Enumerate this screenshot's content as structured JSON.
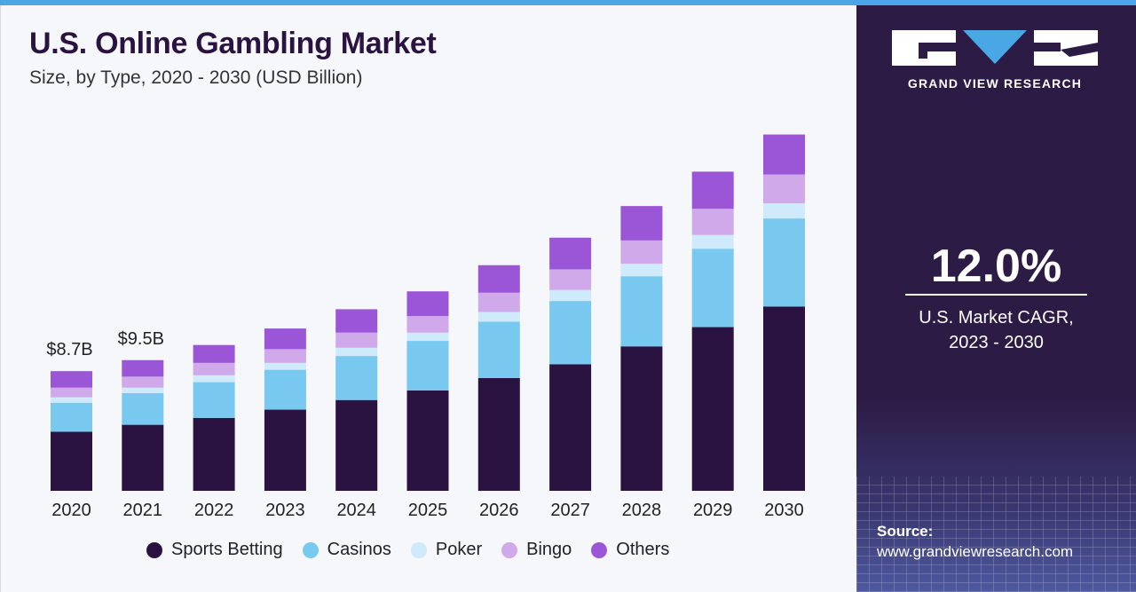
{
  "header": {
    "title": "U.S. Online Gambling Market",
    "subtitle": "Size, by Type, 2020 - 2030 (USD Billion)"
  },
  "brand": {
    "name": "GRAND VIEW RESEARCH",
    "cagr_value": "12.0%",
    "cagr_label_line1": "U.S. Market CAGR,",
    "cagr_label_line2": "2023 - 2030",
    "source_label": "Source:",
    "source_url": "www.grandviewresearch.com"
  },
  "colors": {
    "Sports Betting": "#2a1340",
    "Casinos": "#79c8f0",
    "Poker": "#cfeafb",
    "Bingo": "#cfa9ea",
    "Others": "#9a56d6"
  },
  "chart_data": {
    "type": "bar",
    "stacked": true,
    "title": "U.S. Online Gambling Market",
    "subtitle": "Size, by Type, 2020 - 2030 (USD Billion)",
    "categories": [
      "2020",
      "2021",
      "2022",
      "2023",
      "2024",
      "2025",
      "2026",
      "2027",
      "2028",
      "2029",
      "2030"
    ],
    "series": [
      {
        "name": "Sports Betting",
        "values": [
          4.3,
          4.8,
          5.3,
          5.9,
          6.6,
          7.3,
          8.2,
          9.2,
          10.5,
          11.9,
          13.4
        ]
      },
      {
        "name": "Casinos",
        "values": [
          2.1,
          2.3,
          2.6,
          2.9,
          3.2,
          3.6,
          4.1,
          4.6,
          5.1,
          5.7,
          6.4
        ]
      },
      {
        "name": "Poker",
        "values": [
          0.4,
          0.4,
          0.5,
          0.5,
          0.6,
          0.6,
          0.7,
          0.8,
          0.9,
          1.0,
          1.1
        ]
      },
      {
        "name": "Bingo",
        "values": [
          0.7,
          0.8,
          0.9,
          1.0,
          1.1,
          1.2,
          1.4,
          1.5,
          1.7,
          1.9,
          2.1
        ]
      },
      {
        "name": "Others",
        "values": [
          1.2,
          1.2,
          1.3,
          1.5,
          1.7,
          1.8,
          2.0,
          2.3,
          2.5,
          2.7,
          2.9
        ]
      }
    ],
    "data_labels": [
      {
        "category": "2020",
        "text": "$8.7B"
      },
      {
        "category": "2021",
        "text": "$9.5B"
      }
    ],
    "ylim": [
      0,
      28
    ],
    "grid": false,
    "legend_position": "bottom"
  }
}
